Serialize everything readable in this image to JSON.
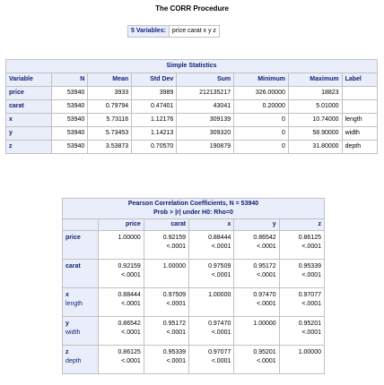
{
  "title": "The CORR Procedure",
  "variables": {
    "label": "5 Variables:",
    "value": "price carat x y z"
  },
  "simple_stats": {
    "caption": "Simple Statistics",
    "columns": [
      "Variable",
      "N",
      "Mean",
      "Std Dev",
      "Sum",
      "Minimum",
      "Maximum",
      "Label"
    ],
    "rows": [
      [
        "price",
        "53940",
        "3933",
        "3989",
        "212135217",
        "326.00000",
        "18823",
        ""
      ],
      [
        "carat",
        "53940",
        "0.79794",
        "0.47401",
        "43041",
        "0.20000",
        "5.01000",
        ""
      ],
      [
        "x",
        "53940",
        "5.73116",
        "1.12176",
        "309139",
        "0",
        "10.74000",
        "length"
      ],
      [
        "y",
        "53940",
        "5.73453",
        "1.14213",
        "309320",
        "0",
        "58.90000",
        "width"
      ],
      [
        "z",
        "53940",
        "3.53873",
        "0.70570",
        "190879",
        "0",
        "31.80000",
        "depth"
      ]
    ]
  },
  "pearson": {
    "caption_line1": "Pearson Correlation Coefficients, N = 53940",
    "caption_line2": "Prob > |r| under H0: Rho=0",
    "columns": [
      "price",
      "carat",
      "x",
      "y",
      "z"
    ],
    "rows": [
      {
        "name": "price",
        "sub": "",
        "cells": [
          [
            "1.00000",
            ""
          ],
          [
            "0.92159",
            "<.0001"
          ],
          [
            "0.88444",
            "<.0001"
          ],
          [
            "0.86542",
            "<.0001"
          ],
          [
            "0.86125",
            "<.0001"
          ]
        ]
      },
      {
        "name": "carat",
        "sub": "",
        "cells": [
          [
            "0.92159",
            "<.0001"
          ],
          [
            "1.00000",
            ""
          ],
          [
            "0.97509",
            "<.0001"
          ],
          [
            "0.95172",
            "<.0001"
          ],
          [
            "0.95339",
            "<.0001"
          ]
        ]
      },
      {
        "name": "x",
        "sub": "length",
        "cells": [
          [
            "0.88444",
            "<.0001"
          ],
          [
            "0.97509",
            "<.0001"
          ],
          [
            "1.00000",
            ""
          ],
          [
            "0.97470",
            "<.0001"
          ],
          [
            "0.97077",
            "<.0001"
          ]
        ]
      },
      {
        "name": "y",
        "sub": "width",
        "cells": [
          [
            "0.86542",
            "<.0001"
          ],
          [
            "0.95172",
            "<.0001"
          ],
          [
            "0.97470",
            "<.0001"
          ],
          [
            "1.00000",
            ""
          ],
          [
            "0.95201",
            "<.0001"
          ]
        ]
      },
      {
        "name": "z",
        "sub": "depth",
        "cells": [
          [
            "0.86125",
            "<.0001"
          ],
          [
            "0.95339",
            "<.0001"
          ],
          [
            "0.97077",
            "<.0001"
          ],
          [
            "0.95201",
            "<.0001"
          ],
          [
            "1.00000",
            ""
          ]
        ]
      }
    ]
  }
}
